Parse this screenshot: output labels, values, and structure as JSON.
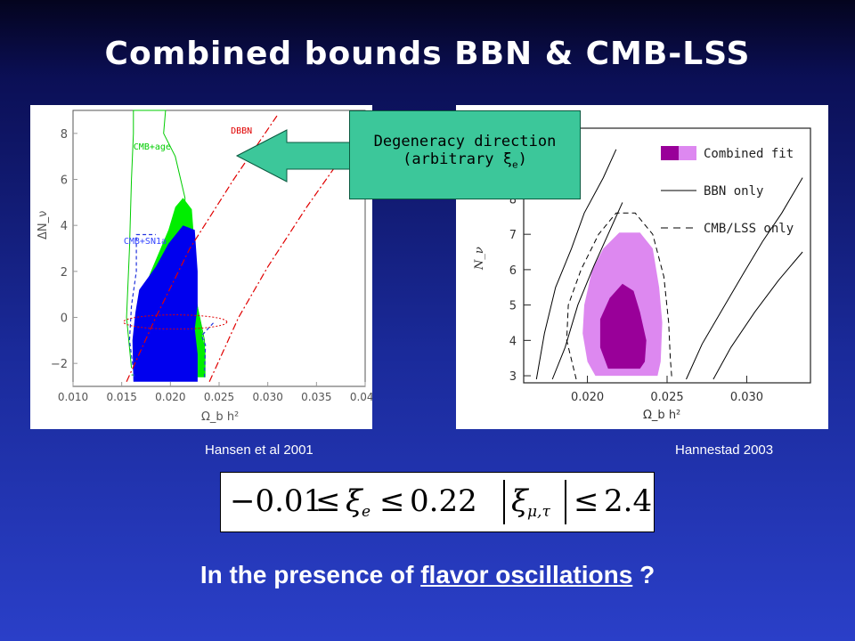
{
  "slide": {
    "title": "Combined bounds BBN & CMB-LSS",
    "caption_left": "Hansen et al 2001",
    "caption_right": "Hannestad 2003",
    "callout_line1": "Degeneracy direction",
    "callout_line2": "(arbitrary ξ",
    "callout_sub": "e",
    "callout_close": ")",
    "formula_left_low": "−0.01",
    "formula_le1": "≤",
    "formula_xi": "ξ",
    "formula_sub_e": "e",
    "formula_le2": "≤",
    "formula_left_high": "0.22",
    "formula_sub_mt": "μ,τ",
    "formula_le3": "≤",
    "formula_right_high": "2.4",
    "question_pre": "In the presence of ",
    "question_link": "flavor oscillations",
    "question_post": " ?"
  },
  "chart_data": [
    {
      "type": "area",
      "xlabel": "Ω_b h²",
      "ylabel": "ΔN_ν",
      "xlim": [
        0.01,
        0.04
      ],
      "ylim": [
        -3,
        9
      ],
      "xticks": [
        "0.010",
        "0.015",
        "0.020",
        "0.025",
        "0.030",
        "0.035",
        "0.040"
      ],
      "yticks": [
        "8",
        "6",
        "4",
        "2",
        "0",
        "−2"
      ],
      "annotations": [
        "CMB+age",
        "CMB+SN1a",
        "DBBN"
      ],
      "series": [
        {
          "name": "CMB+age",
          "color": "#00cc00"
        },
        {
          "name": "CMB+SN1a",
          "color": "#0000ee"
        },
        {
          "name": "DBBN",
          "color": "#e00000"
        }
      ]
    },
    {
      "type": "area",
      "xlabel": "Ω_b h²",
      "ylabel": "N_ν",
      "xlim": [
        0.016,
        0.034
      ],
      "ylim": [
        2.8,
        10.0
      ],
      "xticks": [
        "0.020",
        "0.025",
        "0.030"
      ],
      "yticks": [
        "3",
        "4",
        "5",
        "6",
        "7",
        "8"
      ],
      "legend": [
        "Combined fit",
        "BBN only",
        "CMB/LSS only"
      ],
      "series": [
        {
          "name": "Combined fit",
          "color": "#990099"
        },
        {
          "name": "BBN only",
          "color": "#000000"
        },
        {
          "name": "CMB/LSS only",
          "color": "#000000"
        }
      ]
    }
  ],
  "colors": {
    "callout_fill": "#3cc79a",
    "green_region": "#00ee00",
    "blue_region": "#0000ee",
    "purple_dark": "#990099",
    "purple_light": "#dd88f0"
  }
}
